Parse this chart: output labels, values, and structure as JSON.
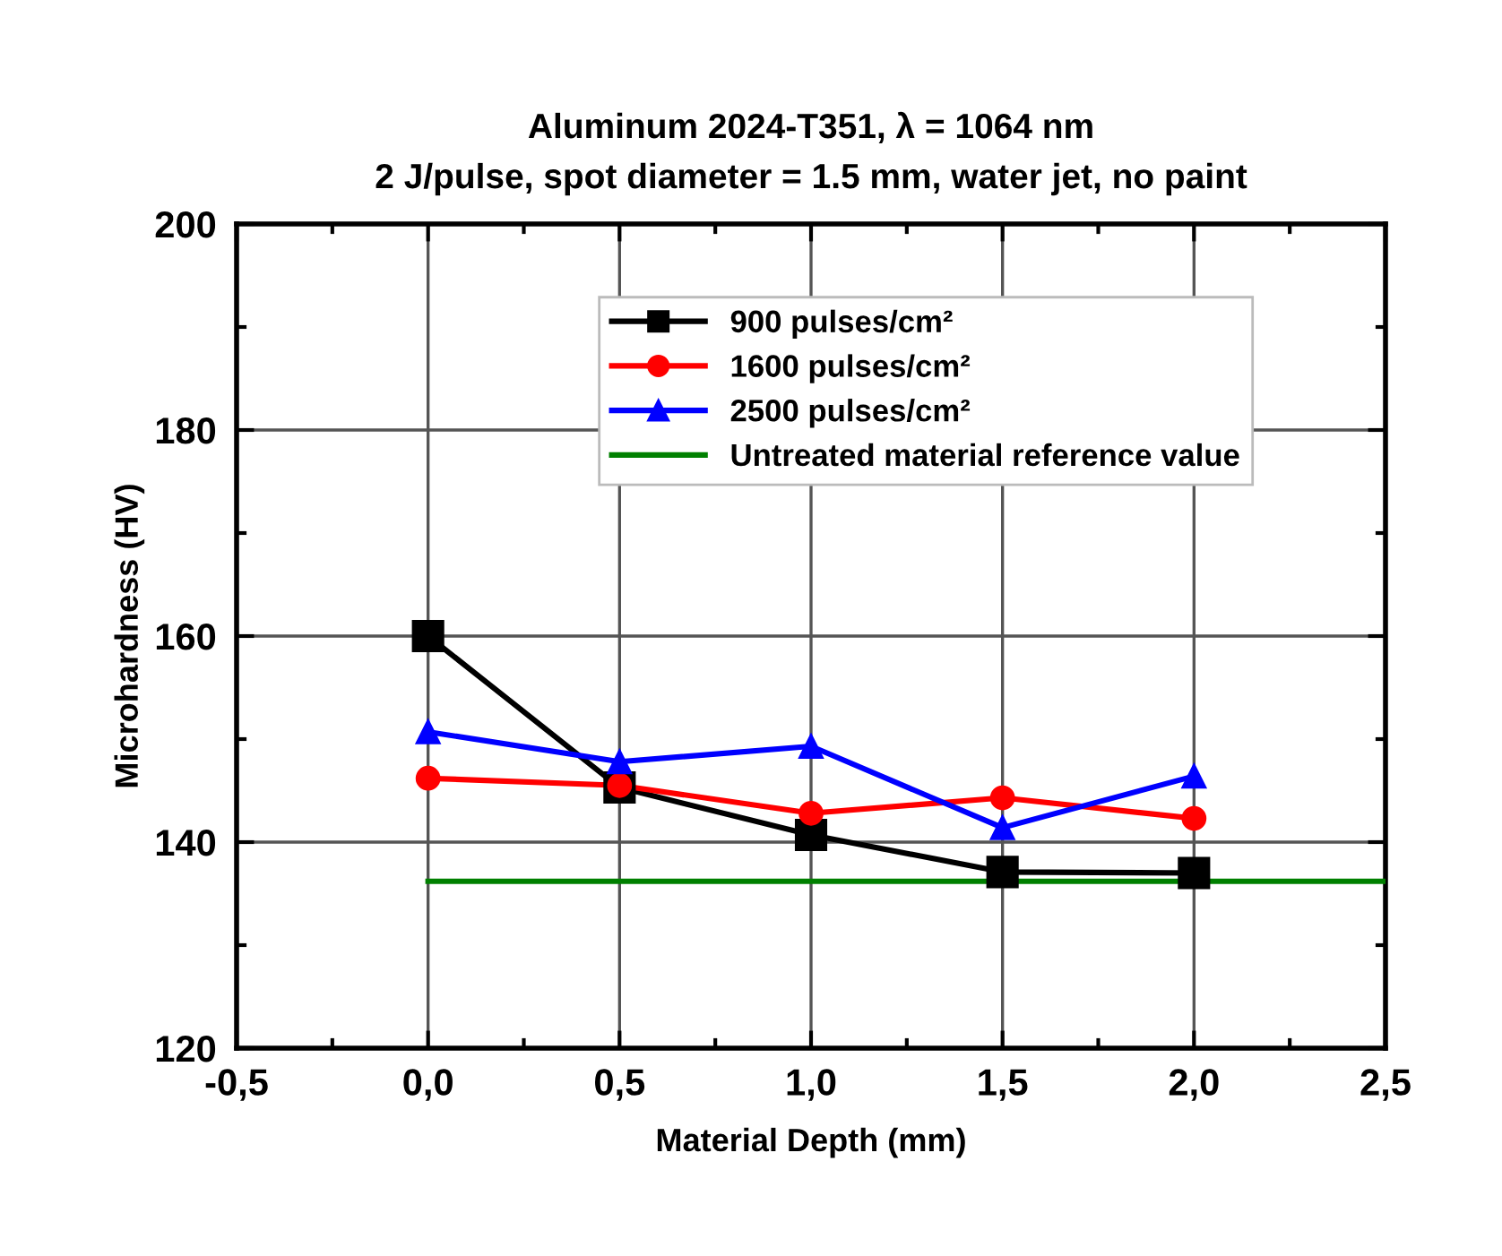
{
  "chart_data": {
    "type": "line",
    "title": "Aluminum 2024-T351, λ = 1064 nm",
    "subtitle": "2 J/pulse, spot diameter = 1.5 mm, water jet, no paint",
    "xlabel": "Material Depth (mm)",
    "ylabel": "Microhardness (HV)",
    "x": [
      0.0,
      0.5,
      1.0,
      1.5,
      2.0
    ],
    "series": [
      {
        "name": "900 pulses/cm²",
        "color": "#000000",
        "marker": "square",
        "values": [
          160.0,
          145.3,
          140.7,
          137.1,
          137.0
        ]
      },
      {
        "name": "1600 pulses/cm²",
        "color": "#ff0000",
        "marker": "circle",
        "values": [
          146.2,
          145.5,
          142.8,
          144.3,
          142.3
        ]
      },
      {
        "name": "2500 pulses/cm²",
        "color": "#0000ff",
        "marker": "triangle",
        "values": [
          150.7,
          147.8,
          149.3,
          141.4,
          146.4
        ]
      },
      {
        "name": "Untreated material reference value",
        "color": "#008000",
        "marker": "none",
        "x": [
          0.0,
          2.5
        ],
        "values": [
          136.2,
          136.2
        ]
      }
    ],
    "xlim": [
      -0.5,
      2.5
    ],
    "ylim": [
      120,
      200
    ],
    "xticks": [
      {
        "value": -0.5,
        "label": "-0,5"
      },
      {
        "value": 0.0,
        "label": "0,0"
      },
      {
        "value": 0.5,
        "label": "0,5"
      },
      {
        "value": 1.0,
        "label": "1,0"
      },
      {
        "value": 1.5,
        "label": "1,5"
      },
      {
        "value": 2.0,
        "label": "2,0"
      },
      {
        "value": 2.5,
        "label": "2,5"
      }
    ],
    "yticks": [
      120,
      140,
      160,
      180,
      200
    ],
    "grid": true,
    "legend": "top",
    "line_style": "solid"
  }
}
